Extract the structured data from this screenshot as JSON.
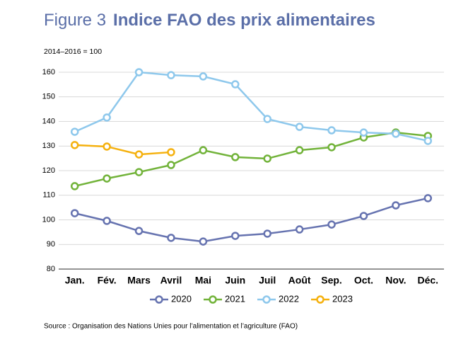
{
  "chart_data": {
    "type": "line",
    "figure_label": "Figure 3",
    "title": "Indice FAO des prix alimentaires",
    "y_label": "2014–2016 = 100",
    "source": "Source : Organisation des Nations Unies pour l’alimentation et l’agriculture (FAO)",
    "categories": [
      "Jan.",
      "Fév.",
      "Mars",
      "Avril",
      "Mai",
      "Juin",
      "Juil",
      "Août",
      "Sep.",
      "Oct.",
      "Nov.",
      "Déc."
    ],
    "series": [
      {
        "name": "2020",
        "color": "#6673b0",
        "values": [
          102.7,
          99.6,
          95.5,
          92.7,
          91.2,
          93.5,
          94.4,
          96.1,
          98.1,
          101.6,
          105.9,
          108.8
        ]
      },
      {
        "name": "2021",
        "color": "#72b33a",
        "values": [
          113.7,
          116.8,
          119.4,
          122.3,
          128.3,
          125.5,
          124.9,
          128.3,
          129.5,
          133.5,
          135.5,
          134.1
        ]
      },
      {
        "name": "2022",
        "color": "#8ec8ec",
        "values": [
          135.8,
          141.6,
          160.0,
          158.8,
          158.3,
          155.1,
          141.0,
          137.8,
          136.4,
          135.5,
          135.0,
          132.1
        ]
      },
      {
        "name": "2023",
        "color": "#f5b10f",
        "values": [
          130.4,
          129.8,
          126.6,
          127.5,
          null,
          null,
          null,
          null,
          null,
          null,
          null,
          null
        ]
      }
    ],
    "ylim": [
      80,
      160
    ],
    "yticks": [
      80,
      90,
      100,
      110,
      120,
      130,
      140,
      150,
      160
    ],
    "grid": true,
    "legend": "bottom"
  }
}
